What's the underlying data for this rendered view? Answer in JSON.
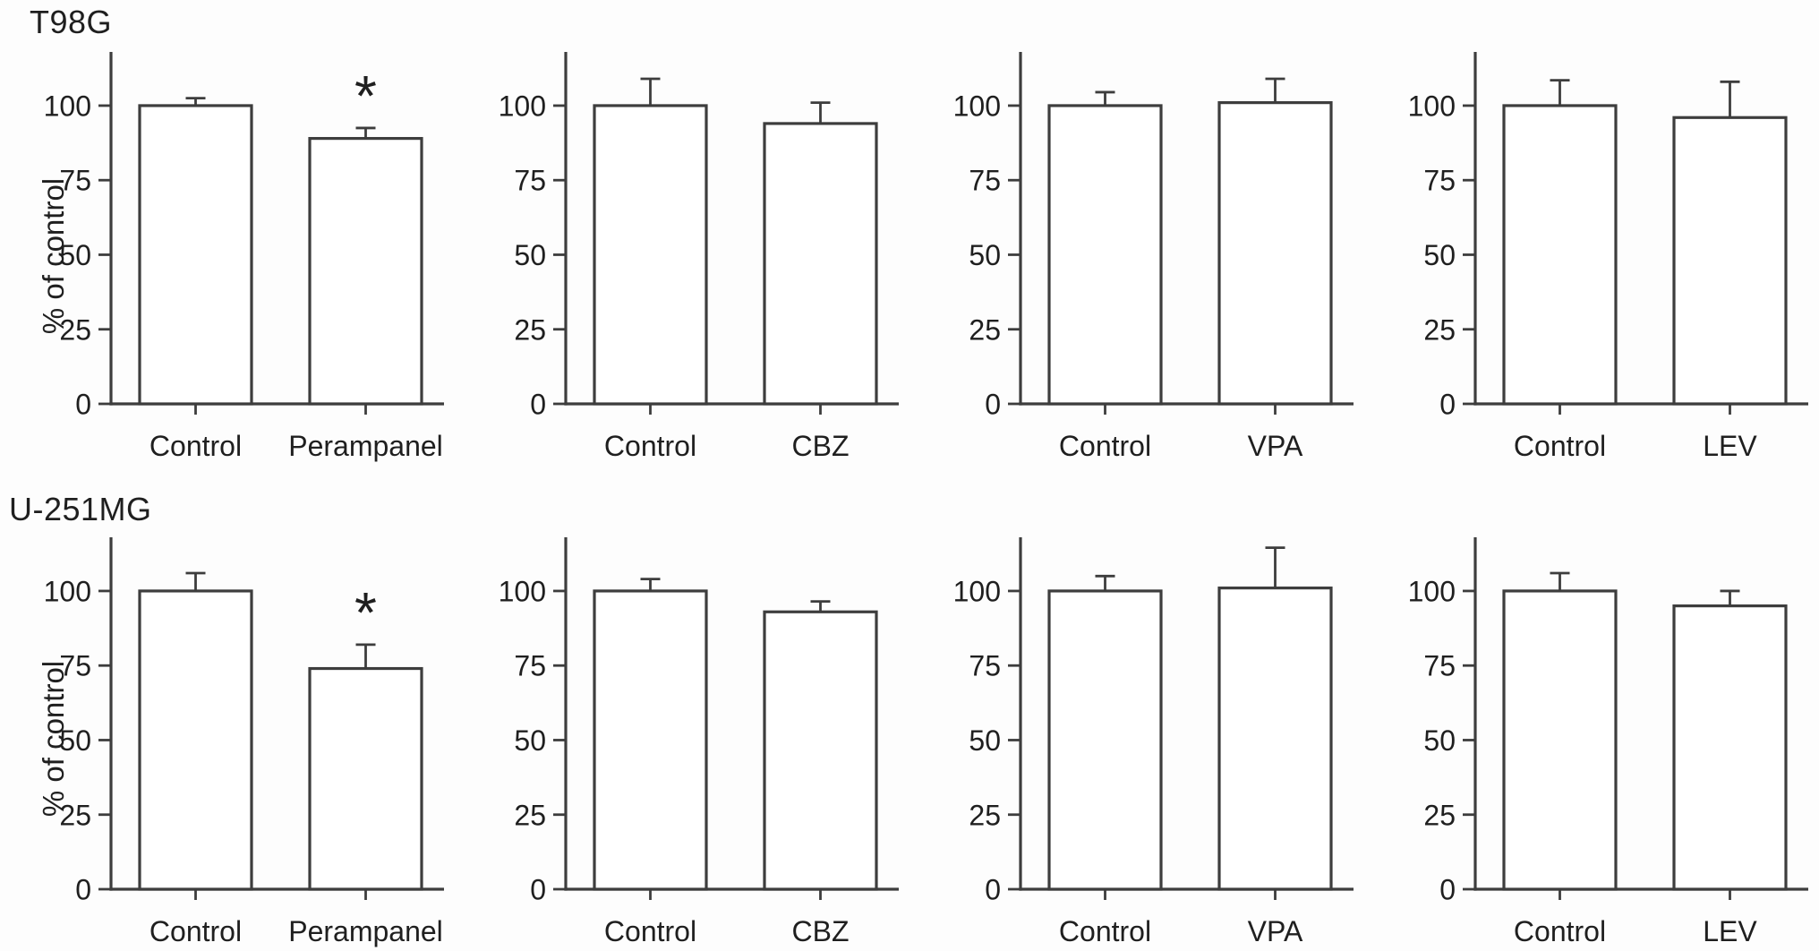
{
  "colors": {
    "stroke": "#3d3d3d",
    "text": "#1f1f1f",
    "bar_fill": "#ffffff",
    "background": "#fdfdfd"
  },
  "layout": {
    "rows": [
      {
        "title": "T98G",
        "ylabel": "% of control",
        "charts": [
          0,
          1,
          2,
          3
        ]
      },
      {
        "title": "U-251MG",
        "ylabel": "% of control",
        "charts": [
          4,
          5,
          6,
          7
        ]
      }
    ]
  },
  "chart_data": [
    {
      "type": "bar",
      "group": "T98G",
      "categories": [
        "Control",
        "Perampanel"
      ],
      "values": [
        100,
        89
      ],
      "errors_plus": [
        2.5,
        3.5
      ],
      "annotations": [
        "",
        "*"
      ],
      "ylabel": "% of control",
      "ylim": [
        0,
        118
      ],
      "yticks": [
        0,
        25,
        50,
        75,
        100
      ]
    },
    {
      "type": "bar",
      "group": "T98G",
      "categories": [
        "Control",
        "CBZ"
      ],
      "values": [
        100,
        94
      ],
      "errors_plus": [
        9,
        7
      ],
      "annotations": [
        "",
        ""
      ],
      "ylabel": "% of control",
      "ylim": [
        0,
        118
      ],
      "yticks": [
        0,
        25,
        50,
        75,
        100
      ]
    },
    {
      "type": "bar",
      "group": "T98G",
      "categories": [
        "Control",
        "VPA"
      ],
      "values": [
        100,
        101
      ],
      "errors_plus": [
        4.5,
        8
      ],
      "annotations": [
        "",
        ""
      ],
      "ylabel": "% of control",
      "ylim": [
        0,
        118
      ],
      "yticks": [
        0,
        25,
        50,
        75,
        100
      ]
    },
    {
      "type": "bar",
      "group": "T98G",
      "categories": [
        "Control",
        "LEV"
      ],
      "values": [
        100,
        96
      ],
      "errors_plus": [
        8.5,
        12
      ],
      "annotations": [
        "",
        ""
      ],
      "ylabel": "% of control",
      "ylim": [
        0,
        118
      ],
      "yticks": [
        0,
        25,
        50,
        75,
        100
      ]
    },
    {
      "type": "bar",
      "group": "U-251MG",
      "categories": [
        "Control",
        "Perampanel"
      ],
      "values": [
        100,
        74
      ],
      "errors_plus": [
        6,
        8
      ],
      "annotations": [
        "",
        "*"
      ],
      "ylabel": "% of control",
      "ylim": [
        0,
        118
      ],
      "yticks": [
        0,
        25,
        50,
        75,
        100
      ]
    },
    {
      "type": "bar",
      "group": "U-251MG",
      "categories": [
        "Control",
        "CBZ"
      ],
      "values": [
        100,
        93
      ],
      "errors_plus": [
        4,
        3.5
      ],
      "annotations": [
        "",
        ""
      ],
      "ylabel": "% of control",
      "ylim": [
        0,
        118
      ],
      "yticks": [
        0,
        25,
        50,
        75,
        100
      ]
    },
    {
      "type": "bar",
      "group": "U-251MG",
      "categories": [
        "Control",
        "VPA"
      ],
      "values": [
        100,
        101
      ],
      "errors_plus": [
        5,
        13.5
      ],
      "annotations": [
        "",
        ""
      ],
      "ylabel": "% of control",
      "ylim": [
        0,
        118
      ],
      "yticks": [
        0,
        25,
        50,
        75,
        100
      ]
    },
    {
      "type": "bar",
      "group": "U-251MG",
      "categories": [
        "Control",
        "LEV"
      ],
      "values": [
        100,
        95
      ],
      "errors_plus": [
        6,
        5
      ],
      "annotations": [
        "",
        ""
      ],
      "ylabel": "% of control",
      "ylim": [
        0,
        118
      ],
      "yticks": [
        0,
        25,
        50,
        75,
        100
      ]
    }
  ]
}
